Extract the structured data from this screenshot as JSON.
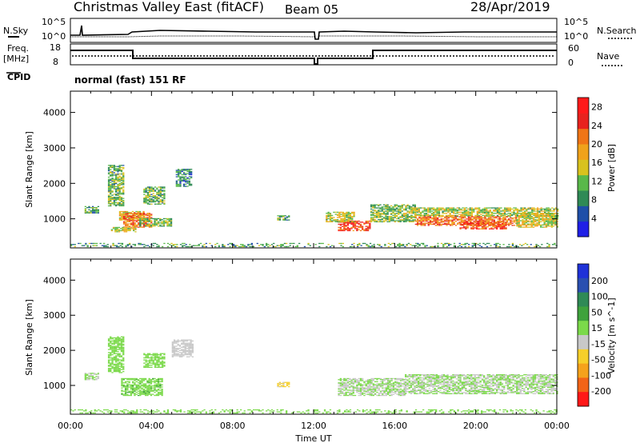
{
  "header": {
    "station": "Christmas Valley East (fitACF)",
    "beam": "Beam 05",
    "date": "28/Apr/2019"
  },
  "aux_labels": {
    "nsky": "N.Sky",
    "nsearch": "N.Search",
    "freq": "Freq.",
    "freq_unit": "[MHz]",
    "nave": "Nave",
    "cpid": "CPID",
    "cpid_value": "normal (fast) 151 RF",
    "noise_ticks": [
      "10^5",
      "10^0"
    ],
    "freq_ticks": [
      "18",
      "8"
    ],
    "nave_ticks": [
      "60",
      "0"
    ]
  },
  "colors": {
    "power_scale": [
      "#1f1fe6",
      "#1f4fa8",
      "#2f8a56",
      "#59b84a",
      "#d8c21e",
      "#f0a21b",
      "#f07516",
      "#e8231e",
      "#ff1a1a"
    ],
    "velocity_scale": [
      "#ff1818",
      "#f26417",
      "#f5a21c",
      "#f6cf2a",
      "#c8c8c8",
      "#7bd94a",
      "#3fa23c",
      "#2f8a56",
      "#2a4fb0",
      "#1f32d8"
    ]
  },
  "chart_data": [
    {
      "type": "heatmap",
      "title": "Power",
      "xlabel": "Time UT",
      "ylabel": "Slant Range [km]",
      "x_ticks": [
        "00:00",
        "04:00",
        "08:00",
        "12:00",
        "16:00",
        "20:00",
        "00:00"
      ],
      "y_ticks": [
        "1000",
        "2000",
        "3000",
        "4000"
      ],
      "ylim": [
        180,
        4600
      ],
      "colorbar": {
        "label": "Power [dB]",
        "ticks": [
          "4",
          "8",
          "12",
          "16",
          "20",
          "24",
          "28"
        ],
        "range": [
          0,
          30
        ]
      },
      "regions": [
        {
          "t": [
            0.7,
            1.4
          ],
          "r": [
            1150,
            1350
          ],
          "v": 10
        },
        {
          "t": [
            1.85,
            2.6
          ],
          "r": [
            1350,
            2500
          ],
          "v": 11
        },
        {
          "t": [
            2.4,
            3.6
          ],
          "r": [
            950,
            1200
          ],
          "v": 17
        },
        {
          "t": [
            2.6,
            4.0
          ],
          "r": [
            750,
            1150
          ],
          "v": 22
        },
        {
          "t": [
            2.0,
            3.2
          ],
          "r": [
            620,
            760
          ],
          "v": 14
        },
        {
          "t": [
            3.6,
            4.6
          ],
          "r": [
            1400,
            1900
          ],
          "v": 11
        },
        {
          "t": [
            3.4,
            5.0
          ],
          "r": [
            780,
            1000
          ],
          "v": 12
        },
        {
          "t": [
            5.2,
            6.0
          ],
          "r": [
            1900,
            2400
          ],
          "v": 8
        },
        {
          "t": [
            10.2,
            10.8
          ],
          "r": [
            950,
            1080
          ],
          "v": 9
        },
        {
          "t": [
            13.2,
            14.8
          ],
          "r": [
            650,
            950
          ],
          "v": 24
        },
        {
          "t": [
            12.6,
            14.0
          ],
          "r": [
            900,
            1200
          ],
          "v": 14
        },
        {
          "t": [
            14.8,
            17.0
          ],
          "r": [
            900,
            1400
          ],
          "v": 12
        },
        {
          "t": [
            16.8,
            24.0
          ],
          "r": [
            1050,
            1300
          ],
          "v": 14
        },
        {
          "t": [
            17.0,
            22.0
          ],
          "r": [
            800,
            1050
          ],
          "v": 22
        },
        {
          "t": [
            19.2,
            21.5
          ],
          "r": [
            700,
            900
          ],
          "v": 24
        },
        {
          "t": [
            22.0,
            24.0
          ],
          "r": [
            750,
            1150
          ],
          "v": 15
        },
        {
          "t": [
            0.0,
            24.0
          ],
          "r": [
            200,
            320
          ],
          "v": 10
        }
      ]
    },
    {
      "type": "heatmap",
      "title": "Velocity",
      "xlabel": "Time UT",
      "ylabel": "Slant Range [km]",
      "x_ticks": [
        "00:00",
        "04:00",
        "08:00",
        "12:00",
        "16:00",
        "20:00",
        "00:00"
      ],
      "y_ticks": [
        "1000",
        "2000",
        "3000",
        "4000"
      ],
      "ylim": [
        180,
        4600
      ],
      "colorbar": {
        "label": "Velocity [m s^-1]",
        "ticks": [
          "200",
          "100",
          "50",
          "15",
          "-15",
          "-50",
          "-100",
          "-200"
        ],
        "range": [
          -250,
          250
        ]
      },
      "regions": [
        {
          "t": [
            0.7,
            1.4
          ],
          "r": [
            1150,
            1350
          ],
          "v": 0
        },
        {
          "t": [
            1.85,
            2.6
          ],
          "r": [
            1350,
            2400
          ],
          "v": 30
        },
        {
          "t": [
            2.5,
            4.5
          ],
          "r": [
            700,
            1200
          ],
          "v": 35
        },
        {
          "t": [
            3.6,
            4.6
          ],
          "r": [
            1500,
            1900
          ],
          "v": 30
        },
        {
          "t": [
            5.0,
            6.0
          ],
          "r": [
            1800,
            2300
          ],
          "v": -30
        },
        {
          "t": [
            10.2,
            10.8
          ],
          "r": [
            950,
            1080
          ],
          "v": -60
        },
        {
          "t": [
            13.2,
            16.5
          ],
          "r": [
            700,
            1200
          ],
          "v": 0
        },
        {
          "t": [
            16.5,
            24.0
          ],
          "r": [
            750,
            1300
          ],
          "v": 0
        },
        {
          "t": [
            0.0,
            24.0
          ],
          "r": [
            200,
            300
          ],
          "v": 20
        }
      ]
    }
  ]
}
